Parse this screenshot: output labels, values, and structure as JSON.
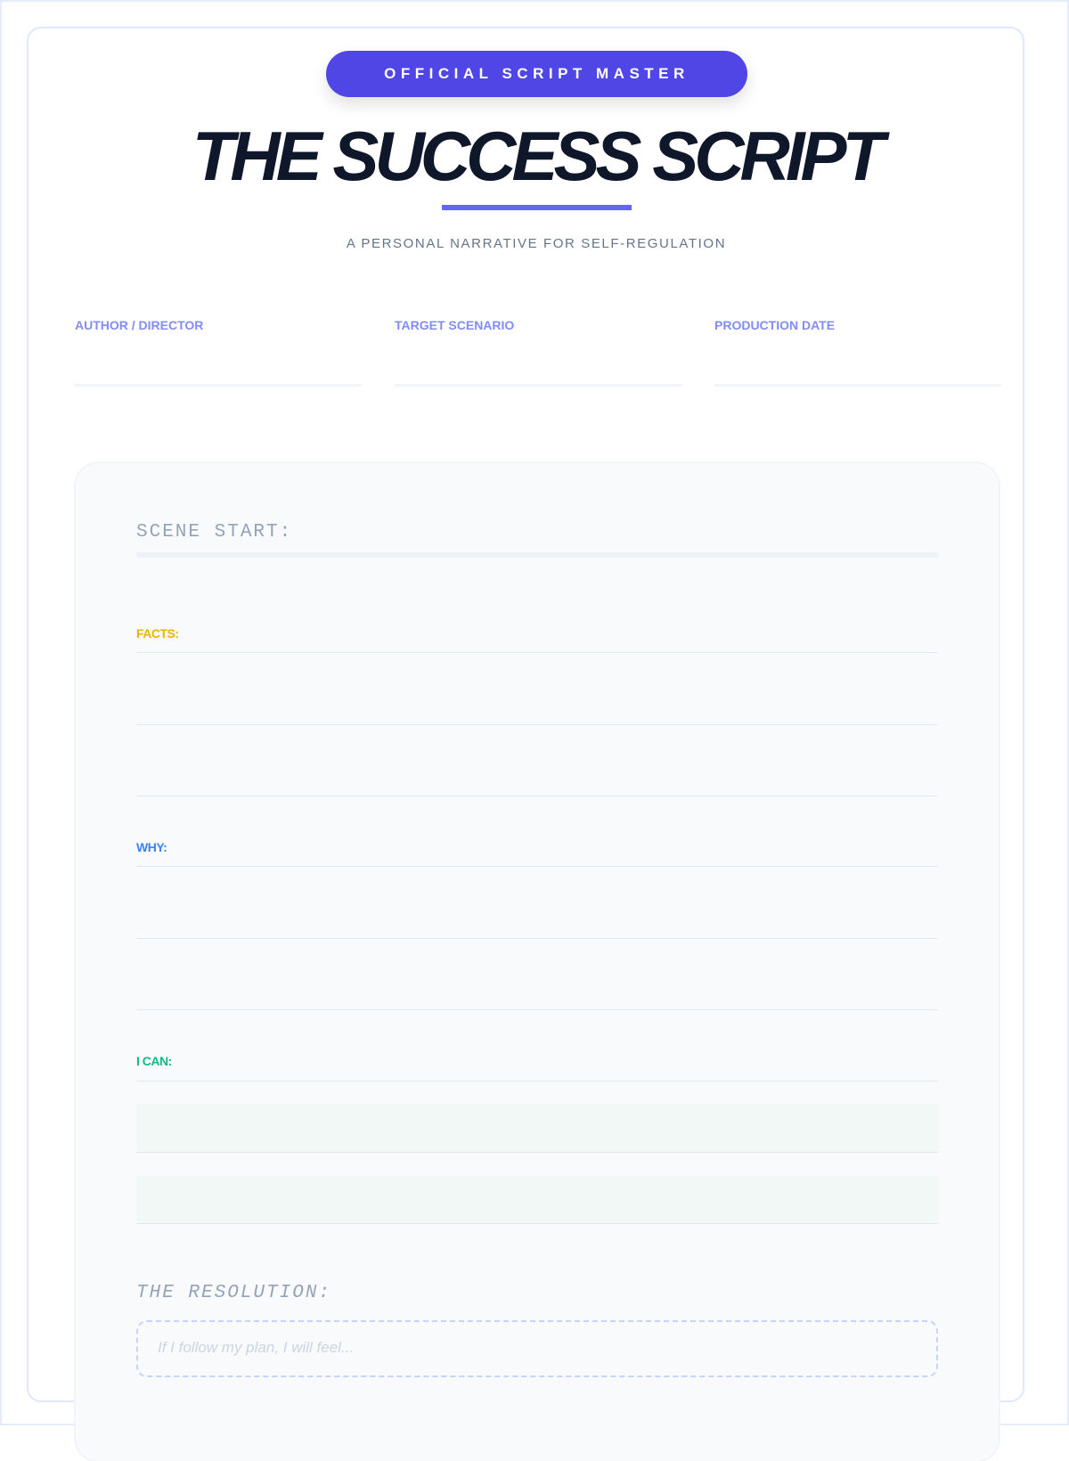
{
  "header": {
    "badge": "OFFICIAL SCRIPT MASTER",
    "title": "THE SUCCESS SCRIPT",
    "subtitle": "A PERSONAL NARRATIVE FOR SELF-REGULATION"
  },
  "meta": [
    {
      "label": "AUTHOR / DIRECTOR",
      "value": ""
    },
    {
      "label": "TARGET SCENARIO",
      "value": ""
    },
    {
      "label": "PRODUCTION DATE",
      "value": ""
    }
  ],
  "script": {
    "scene_start": "SCENE START:",
    "sections": [
      {
        "label": "FACTS:",
        "color": "#eab308"
      },
      {
        "label": "WHY:",
        "color": "#3b82f6"
      },
      {
        "label": "I CAN:",
        "color": "#10b981"
      }
    ],
    "resolution_label": "THE RESOLUTION:",
    "resolution_placeholder": "If I follow my plan, I will feel..."
  },
  "colors": {
    "accent": "#4f46e5",
    "rule": "#6366f1",
    "meta_label": "#818cf8"
  }
}
